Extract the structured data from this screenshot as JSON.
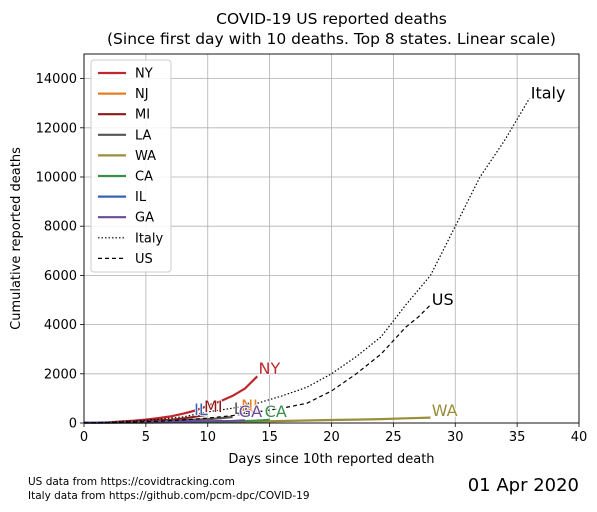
{
  "chart_data": {
    "type": "line",
    "title": [
      "COVID-19 US reported deaths",
      "(Since first day with 10 deaths. Top 8 states. Linear scale)"
    ],
    "xlabel": "Days since 10th reported death",
    "ylabel": "Cumulative reported deaths",
    "xlim": [
      0,
      40
    ],
    "ylim": [
      0,
      15000
    ],
    "xticks": [
      "0",
      "5",
      "10",
      "15",
      "20",
      "25",
      "30",
      "35",
      "40"
    ],
    "yticks": [
      "0",
      "2000",
      "4000",
      "6000",
      "8000",
      "10000",
      "12000",
      "14000"
    ],
    "grid": true,
    "legend_position": "top-left",
    "series": [
      {
        "name": "NY",
        "label": "NY",
        "color": "#c0272d",
        "dash": "",
        "width": 2.2,
        "x": [
          0,
          1,
          2,
          3,
          4,
          5,
          6,
          7,
          8,
          9,
          10,
          11,
          12,
          13,
          14
        ],
        "y": [
          10,
          15,
          30,
          60,
          95,
          140,
          200,
          270,
          380,
          510,
          700,
          880,
          1100,
          1400,
          1900
        ]
      },
      {
        "name": "NJ",
        "label": "NJ",
        "color": "#e67e22",
        "dash": "",
        "width": 2,
        "x": [
          0,
          1,
          2,
          3,
          4,
          5,
          6,
          7,
          8,
          9,
          10,
          11,
          12
        ],
        "y": [
          10,
          12,
          16,
          20,
          27,
          44,
          62,
          81,
          108,
          140,
          161,
          198,
          267
        ]
      },
      {
        "name": "MI",
        "label": "MI",
        "color": "#8b1a1a",
        "dash": "",
        "width": 2,
        "x": [
          0,
          1,
          2,
          3,
          4,
          5,
          6,
          7,
          8,
          9,
          10
        ],
        "y": [
          10,
          15,
          24,
          43,
          60,
          92,
          111,
          132,
          184,
          259,
          337
        ]
      },
      {
        "name": "LA",
        "label": "LA",
        "color": "#555555",
        "dash": "",
        "width": 2,
        "x": [
          0,
          1,
          2,
          3,
          4,
          5,
          6,
          7,
          8,
          9,
          10,
          11,
          12
        ],
        "y": [
          10,
          14,
          18,
          20,
          34,
          46,
          65,
          83,
          119,
          137,
          151,
          185,
          239
        ]
      },
      {
        "name": "WA",
        "label": "WA",
        "color": "#998e3a",
        "dash": "",
        "width": 2.2,
        "x": [
          0,
          2,
          4,
          6,
          8,
          10,
          12,
          14,
          16,
          18,
          20,
          22,
          24,
          26,
          28
        ],
        "y": [
          10,
          12,
          18,
          22,
          30,
          35,
          45,
          60,
          80,
          100,
          120,
          140,
          160,
          190,
          220
        ]
      },
      {
        "name": "CA",
        "label": "CA",
        "color": "#3b8f4d",
        "dash": "",
        "width": 2,
        "x": [
          0,
          2,
          4,
          6,
          8,
          10,
          12,
          13,
          14,
          15
        ],
        "y": [
          10,
          12,
          16,
          22,
          30,
          40,
          60,
          80,
          100,
          130
        ]
      },
      {
        "name": "IL",
        "label": "IL",
        "color": "#3464b4",
        "dash": "",
        "width": 2,
        "x": [
          0,
          1,
          2,
          3,
          4,
          5,
          6,
          7,
          8,
          9
        ],
        "y": [
          10,
          12,
          16,
          19,
          26,
          34,
          47,
          66,
          73,
          99
        ]
      },
      {
        "name": "GA",
        "label": "GA",
        "color": "#6a4a9a",
        "dash": "",
        "width": 2,
        "x": [
          0,
          1,
          2,
          3,
          4,
          5,
          6,
          7,
          8,
          9,
          10,
          11,
          12,
          13
        ],
        "y": [
          10,
          14,
          20,
          25,
          26,
          32,
          38,
          47,
          56,
          65,
          79,
          80,
          87,
          108
        ]
      },
      {
        "name": "Italy",
        "label": "Italy",
        "color": "#000000",
        "dash": "1.5 2",
        "width": 1.2,
        "x": [
          0,
          2,
          4,
          6,
          8,
          10,
          12,
          14,
          16,
          18,
          20,
          22,
          24,
          26,
          28,
          30,
          32,
          34,
          36
        ],
        "y": [
          10,
          30,
          80,
          150,
          250,
          450,
          600,
          800,
          1100,
          1450,
          2000,
          2700,
          3500,
          4800,
          6000,
          8000,
          10000,
          11500,
          13200
        ]
      },
      {
        "name": "US",
        "label": "US",
        "color": "#000000",
        "dash": "4 3",
        "width": 1.2,
        "x": [
          0,
          2,
          4,
          6,
          8,
          10,
          12,
          14,
          16,
          18,
          20,
          22,
          24,
          26,
          27,
          28
        ],
        "y": [
          10,
          20,
          40,
          70,
          120,
          200,
          300,
          450,
          600,
          800,
          1300,
          2000,
          2800,
          3900,
          4300,
          4800
        ]
      }
    ],
    "end_labels": [
      {
        "series": "NY",
        "text": "NY",
        "x": 14.1,
        "y": 2000
      },
      {
        "series": "IL",
        "text": "IL",
        "x": 8.9,
        "y": 330
      },
      {
        "series": "MI",
        "text": "MI",
        "x": 9.7,
        "y": 440
      },
      {
        "series": "LA",
        "text": "LA",
        "x": 12.1,
        "y": 370
      },
      {
        "series": "NJ",
        "text": "NJ",
        "x": 12.7,
        "y": 480
      },
      {
        "series": "GA",
        "text": "GA",
        "x": 12.5,
        "y": 250
      },
      {
        "series": "CA",
        "text": "CA",
        "x": 14.6,
        "y": 250
      },
      {
        "series": "WA",
        "text": "WA",
        "x": 28.1,
        "y": 280
      },
      {
        "series": "Italy",
        "text": "Italy",
        "x": 36.1,
        "y": 13200
      },
      {
        "series": "US",
        "text": "US",
        "x": 28.1,
        "y": 4800
      }
    ]
  },
  "footer": {
    "line1": "US data from https://covidtracking.com",
    "line2": "Italy data from https://github.com/pcm-dpc/COVID-19"
  },
  "date_label": "01 Apr 2020"
}
